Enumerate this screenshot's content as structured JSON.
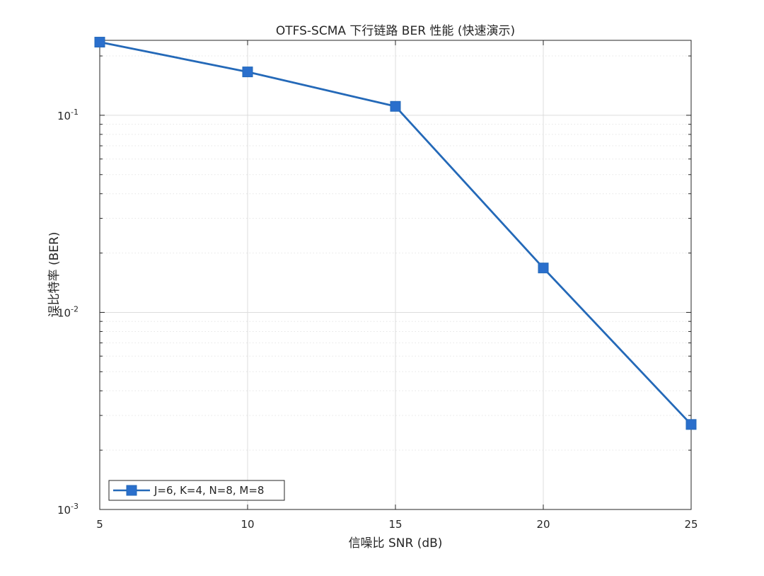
{
  "chart_data": {
    "type": "line",
    "title": "OTFS-SCMA 下行链路 BER 性能 (快速演示)",
    "xlabel": "信噪比 SNR (dB)",
    "ylabel": "误比特率 (BER)",
    "xlim": [
      5,
      25
    ],
    "ylim": [
      0.001,
      0.24
    ],
    "yscale": "log",
    "grid": true,
    "legend_position": "bottom-left",
    "x_ticks": [
      "5",
      "10",
      "15",
      "20",
      "25"
    ],
    "y_ticks": [
      {
        "value": 0.1,
        "base": "10",
        "exp": "-1"
      },
      {
        "value": 0.01,
        "base": "10",
        "exp": "-2"
      },
      {
        "value": 0.001,
        "base": "10",
        "exp": "-3"
      }
    ],
    "x": [
      5,
      10,
      15,
      20,
      25
    ],
    "series": [
      {
        "name": "J=6, K=4, N=8, M=8",
        "color": "#2469b8",
        "marker_color": "#2a6fcc",
        "marker": "square",
        "values": [
          0.235,
          0.166,
          0.111,
          0.0168,
          0.0027
        ]
      }
    ]
  }
}
